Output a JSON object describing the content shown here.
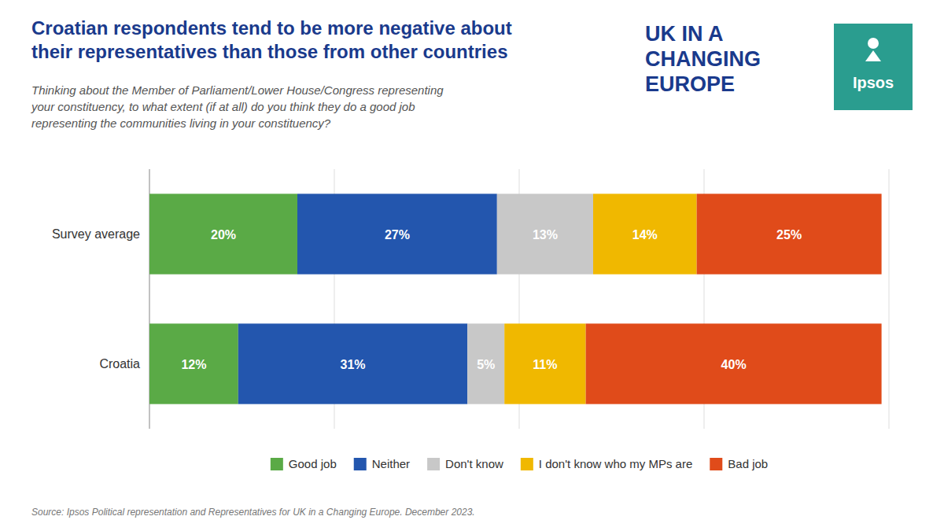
{
  "chart_data": {
    "type": "bar",
    "orientation": "horizontal",
    "stacked": true,
    "data_labels": true,
    "grid": true,
    "legend": "bottom",
    "tick_labels": "y",
    "title": "Croatian respondents tend to be more negative about\ntheir representatives than those from other countries",
    "subtitle": "Thinking about the Member of Parliament/Lower House/Congress representing\nyour constituency, to what extent (if at all) do you think they do a good job\nrepresenting the communities living in your constituency?",
    "source": "Source: Ipsos Political representation and Representatives for UK in a Changing Europe. December 2023.",
    "annotations": [
      "UK IN A",
      "CHANGING",
      "EUROPE",
      "Ipsos"
    ],
    "categories": [
      "Survey average",
      "Croatia"
    ],
    "series": [
      {
        "name": "Good job",
        "color": "#5aaa46",
        "values": [
          20,
          12
        ],
        "value_labels": [
          "20%",
          "12%"
        ]
      },
      {
        "name": "Neither",
        "color": "#2356ae",
        "values": [
          27,
          31
        ],
        "value_labels": [
          "27%",
          "31%"
        ]
      },
      {
        "name": "Don't know",
        "color": "#c8c8c8",
        "values": [
          13,
          5
        ],
        "value_labels": [
          "13%",
          "5%"
        ]
      },
      {
        "name": "I don't know who my MPs are",
        "color": "#f0b800",
        "values": [
          14,
          11
        ],
        "value_labels": [
          "14%",
          "11%"
        ]
      },
      {
        "name": "Bad job",
        "color": "#e04b1a",
        "values": [
          25,
          40
        ],
        "value_labels": [
          "25%",
          "40%"
        ]
      }
    ],
    "xlim": [
      0,
      100
    ],
    "xticks": [
      0,
      25,
      50,
      75,
      100
    ]
  }
}
